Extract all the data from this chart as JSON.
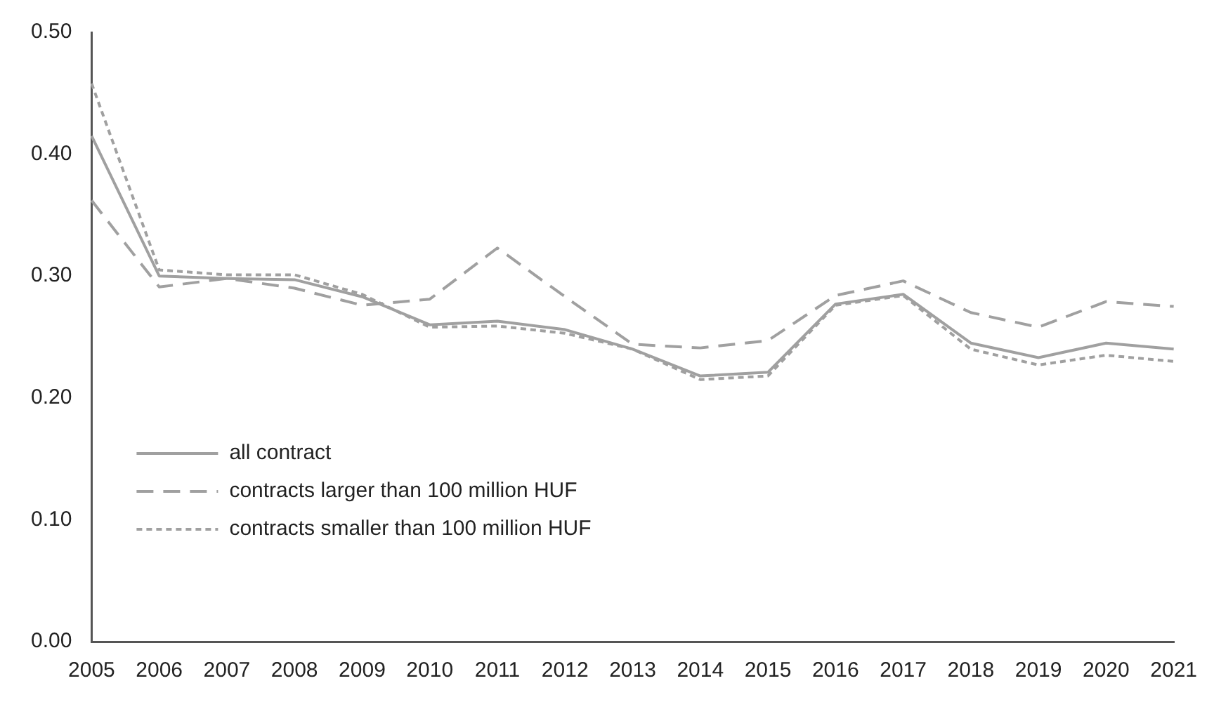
{
  "chart_data": {
    "type": "line",
    "categories": [
      "2005",
      "2006",
      "2007",
      "2008",
      "2009",
      "2010",
      "2011",
      "2012",
      "2013",
      "2014",
      "2015",
      "2016",
      "2017",
      "2018",
      "2019",
      "2020",
      "2021"
    ],
    "series": [
      {
        "name": "all contract",
        "color": "#a0a0a0",
        "line_style": "solid",
        "values": [
          0.415,
          0.3,
          0.298,
          0.297,
          0.283,
          0.26,
          0.263,
          0.256,
          0.24,
          0.218,
          0.221,
          0.277,
          0.285,
          0.245,
          0.233,
          0.245,
          0.24
        ]
      },
      {
        "name": "contracts larger than 100 million HUF",
        "color": "#a0a0a0",
        "line_style": "dashed",
        "values": [
          0.362,
          0.291,
          0.298,
          0.29,
          0.276,
          0.281,
          0.323,
          0.283,
          0.244,
          0.241,
          0.247,
          0.284,
          0.296,
          0.27,
          0.258,
          0.279,
          0.275
        ]
      },
      {
        "name": "contracts smaller than 100 million HUF",
        "color": "#a0a0a0",
        "line_style": "dotted",
        "values": [
          0.458,
          0.305,
          0.301,
          0.301,
          0.285,
          0.258,
          0.259,
          0.253,
          0.24,
          0.215,
          0.218,
          0.276,
          0.284,
          0.24,
          0.227,
          0.235,
          0.23
        ]
      }
    ],
    "ylim": [
      0,
      0.5
    ],
    "yticks": [
      {
        "value": 0,
        "label": "0.00"
      },
      {
        "value": 0.1,
        "label": "0.10"
      },
      {
        "value": 0.2,
        "label": "0.20"
      },
      {
        "value": 0.3,
        "label": "0.30"
      },
      {
        "value": 0.4,
        "label": "0.40"
      },
      {
        "value": 0.5,
        "label": "0.50"
      }
    ],
    "grid": false,
    "legend": "bottom left",
    "marker": "none"
  }
}
